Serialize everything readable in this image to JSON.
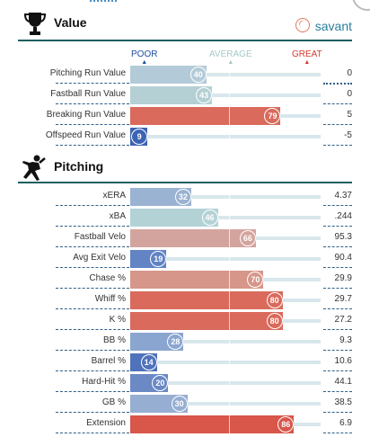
{
  "colors": {
    "poor": "#3f6fb5",
    "great": "#d8675a",
    "average": "#a6c7c7"
  },
  "value_section": {
    "title": "Value",
    "icon": "trophy-icon",
    "brand": "savant",
    "scale": {
      "poor": "POOR",
      "average": "AVERAGE",
      "great": "GREAT"
    },
    "rows": [
      {
        "label": "Pitching Run Value",
        "percentile": "40",
        "value": "0",
        "color": "#b3cbd8"
      },
      {
        "label": "Fastball Run Value",
        "percentile": "43",
        "value": "0",
        "color": "#b4d0d4"
      },
      {
        "label": "Breaking Run Value",
        "percentile": "79",
        "value": "5",
        "color": "#d96a5c"
      },
      {
        "label": "Offspeed Run Value",
        "percentile": "9",
        "value": "-5",
        "color": "#3d63b3"
      }
    ]
  },
  "pitching_section": {
    "title": "Pitching",
    "icon": "pitcher-icon",
    "rows": [
      {
        "label": "xERA",
        "percentile": "32",
        "value": "4.37",
        "color": "#9bb3d2"
      },
      {
        "label": "xBA",
        "percentile": "46",
        "value": ".244",
        "color": "#b3d2d6"
      },
      {
        "label": "Fastball Velo",
        "percentile": "66",
        "value": "95.3",
        "color": "#d3a49d"
      },
      {
        "label": "Avg Exit Velo",
        "percentile": "19",
        "value": "90.4",
        "color": "#6284c4"
      },
      {
        "label": "Chase %",
        "percentile": "70",
        "value": "29.9",
        "color": "#d7968a"
      },
      {
        "label": "Whiff %",
        "percentile": "80",
        "value": "29.7",
        "color": "#d96a5c"
      },
      {
        "label": "K %",
        "percentile": "80",
        "value": "27.2",
        "color": "#d96a5c"
      },
      {
        "label": "BB %",
        "percentile": "28",
        "value": "9.3",
        "color": "#8aa5d0"
      },
      {
        "label": "Barrel %",
        "percentile": "14",
        "value": "10.6",
        "color": "#4f73bb"
      },
      {
        "label": "Hard-Hit %",
        "percentile": "20",
        "value": "44.1",
        "color": "#6a89c5"
      },
      {
        "label": "GB %",
        "percentile": "30",
        "value": "38.5",
        "color": "#97aed3"
      },
      {
        "label": "Extension",
        "percentile": "86",
        "value": "6.9",
        "color": "#d8564a"
      }
    ]
  }
}
